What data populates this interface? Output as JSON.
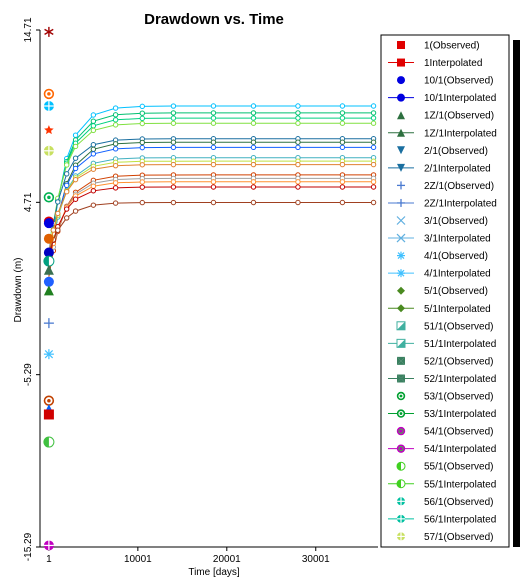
{
  "chart_data": {
    "type": "line",
    "title": "Drawdown vs. Time",
    "xlabel": "Time  [days]",
    "ylabel": "Drawdown (m)",
    "xlim": [
      -1000,
      37000
    ],
    "ylim": [
      -15.29,
      14.71
    ],
    "xticks": [
      {
        "v": 1,
        "label": "1"
      },
      {
        "v": 10001,
        "label": "10001"
      },
      {
        "v": 20001,
        "label": "20001"
      },
      {
        "v": 30001,
        "label": "30001"
      }
    ],
    "yticks": [
      {
        "v": 14.71,
        "label": "14.71"
      },
      {
        "v": 4.71,
        "label": "4.71"
      },
      {
        "v": -5.29,
        "label": "-5.29"
      },
      {
        "v": -15.29,
        "label": "-15.29"
      }
    ],
    "x": [
      1,
      500,
      1000,
      2000,
      3000,
      5000,
      7500,
      10500,
      14000,
      18500,
      23000,
      28000,
      33000,
      36500
    ],
    "interp_levels": [
      10.3,
      9.9,
      9.6,
      9.3,
      8.4,
      8.2,
      7.9,
      7.3,
      7.1,
      6.9,
      6.3,
      6.1,
      5.9,
      5.6,
      4.7
    ],
    "interp_colors": [
      "#00c0ff",
      "#00c070",
      "#00d080",
      "#80e040",
      "#1a6fa0",
      "#2e7040",
      "#1060ff",
      "#40b0c0",
      "#c0e040",
      "#e08030",
      "#d04000",
      "#a0a0a0",
      "#ff9030",
      "#c00000",
      "#a04020"
    ],
    "early_points": [
      {
        "y": 14.6,
        "color": "#a00000",
        "marker": "star6"
      },
      {
        "y": 11.0,
        "color": "#ff6600",
        "marker": "ring-dot"
      },
      {
        "y": 10.3,
        "color": "#00c0ff",
        "marker": "circle-plus"
      },
      {
        "y": 8.9,
        "color": "#ff3300",
        "marker": "star"
      },
      {
        "y": 7.7,
        "color": "#c8e060",
        "marker": "circle-plus"
      },
      {
        "y": 5.0,
        "color": "#00b050",
        "marker": "ring-dot"
      },
      {
        "y": 3.6,
        "color": "#e00000",
        "marker": "circle"
      },
      {
        "y": 3.5,
        "color": "#0000e0",
        "marker": "circle"
      },
      {
        "y": 2.6,
        "color": "#e06000",
        "marker": "circle"
      },
      {
        "y": 1.8,
        "color": "#0000c0",
        "marker": "circle"
      },
      {
        "y": 1.3,
        "color": "#00a080",
        "marker": "half-circle"
      },
      {
        "y": 0.8,
        "color": "#3a7050",
        "marker": "triangle"
      },
      {
        "y": 0.1,
        "color": "#2060ff",
        "marker": "circle"
      },
      {
        "y": -0.4,
        "color": "#208020",
        "marker": "triangle"
      },
      {
        "y": -2.3,
        "color": "#4a7ad0",
        "marker": "plus"
      },
      {
        "y": -4.1,
        "color": "#40c0ff",
        "marker": "asterisk"
      },
      {
        "y": -6.8,
        "color": "#c04000",
        "marker": "ring-dot"
      },
      {
        "y": -7.3,
        "color": "#0060ff",
        "marker": "triangle"
      },
      {
        "y": -7.6,
        "color": "#d00000",
        "marker": "square"
      },
      {
        "y": -9.2,
        "color": "#40c040",
        "marker": "half-circle"
      },
      {
        "y": -15.2,
        "color": "#c000c0",
        "marker": "circle-plus"
      }
    ],
    "grid": false,
    "legend": {
      "position": "right",
      "entries": [
        {
          "label": "1(Observed)",
          "color": "#e00000",
          "marker": "square",
          "line": false
        },
        {
          "label": "1Interpolated",
          "color": "#e00000",
          "marker": "square",
          "line": true
        },
        {
          "label": "10/1(Observed)",
          "color": "#0000e0",
          "marker": "circle",
          "line": false
        },
        {
          "label": "10/1Interpolated",
          "color": "#0000e0",
          "marker": "circle",
          "line": true
        },
        {
          "label": "1Z/1(Observed)",
          "color": "#2e7040",
          "marker": "triangle",
          "line": false
        },
        {
          "label": "1Z/1Interpolated",
          "color": "#2e7040",
          "marker": "triangle",
          "line": true
        },
        {
          "label": "2/1(Observed)",
          "color": "#1a6fa0",
          "marker": "tri-down",
          "line": false
        },
        {
          "label": "2/1Interpolated",
          "color": "#1a6fa0",
          "marker": "tri-down",
          "line": true
        },
        {
          "label": "2Z/1(Observed)",
          "color": "#4a7ad0",
          "marker": "plus",
          "line": false
        },
        {
          "label": "2Z/1Interpolated",
          "color": "#4a7ad0",
          "marker": "plus",
          "line": true
        },
        {
          "label": "3/1(Observed)",
          "color": "#60b0e0",
          "marker": "x",
          "line": false
        },
        {
          "label": "3/1Interpolated",
          "color": "#60b0e0",
          "marker": "x",
          "line": true
        },
        {
          "label": "4/1(Observed)",
          "color": "#40c0ff",
          "marker": "asterisk",
          "line": false
        },
        {
          "label": "4/1Interpolated",
          "color": "#40c0ff",
          "marker": "asterisk",
          "line": true
        },
        {
          "label": "5/1(Observed)",
          "color": "#4a8a20",
          "marker": "diamond",
          "line": false
        },
        {
          "label": "5/1Interpolated",
          "color": "#4a8a20",
          "marker": "diamond",
          "line": true
        },
        {
          "label": "51/1(Observed)",
          "color": "#40b0a0",
          "marker": "halfsquare",
          "line": false
        },
        {
          "label": "51/1Interpolated",
          "color": "#40b0a0",
          "marker": "halfsquare",
          "line": true
        },
        {
          "label": "52/1(Observed)",
          "color": "#3a8060",
          "marker": "bowtie",
          "line": false
        },
        {
          "label": "52/1Interpolated",
          "color": "#3a8060",
          "marker": "bowtie",
          "line": true
        },
        {
          "label": "53/1(Observed)",
          "color": "#00a030",
          "marker": "ring-dot",
          "line": false
        },
        {
          "label": "53/1Interpolated",
          "color": "#00a030",
          "marker": "ring-dot",
          "line": true
        },
        {
          "label": "54/1(Observed)",
          "color": "#c000c0",
          "marker": "ring-dot-green",
          "line": false
        },
        {
          "label": "54/1Interpolated",
          "color": "#c000c0",
          "marker": "ring-dot-green",
          "line": true
        },
        {
          "label": "55/1(Observed)",
          "color": "#40d020",
          "marker": "half-circle",
          "line": false
        },
        {
          "label": "55/1Interpolated",
          "color": "#40d020",
          "marker": "half-circle",
          "line": true
        },
        {
          "label": "56/1(Observed)",
          "color": "#00c0a0",
          "marker": "circle-plus",
          "line": false
        },
        {
          "label": "56/1Interpolated",
          "color": "#00c0a0",
          "marker": "circle-plus",
          "line": true
        },
        {
          "label": "57/1(Observed)",
          "color": "#c8e060",
          "marker": "circle-plus",
          "line": false
        }
      ]
    }
  }
}
